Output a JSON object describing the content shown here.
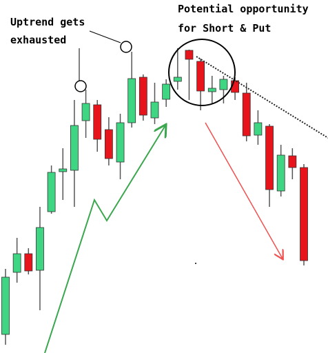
{
  "chart_data": {
    "type": "candlestick",
    "annotations": [
      {
        "lines": [
          "Uptrend gets",
          "exhausted"
        ]
      },
      {
        "lines": [
          "Potential opportunity",
          "for Short & Put"
        ]
      }
    ],
    "categories": [
      null,
      null,
      null,
      null,
      null,
      null,
      null,
      null,
      null,
      null,
      null,
      null,
      null,
      null,
      null,
      null,
      null,
      null,
      null,
      null,
      null,
      null,
      null,
      null,
      null,
      null,
      null
    ],
    "open": [
      27,
      117,
      144,
      120,
      205,
      263,
      265,
      337,
      360,
      324,
      277,
      334,
      400,
      341,
      368,
      394,
      439,
      423,
      379,
      382,
      395,
      377,
      316,
      329,
      235,
      286,
      269
    ],
    "high": [
      122,
      167,
      152,
      212,
      272,
      297,
      367,
      382,
      367,
      342,
      347,
      437,
      404,
      392,
      397,
      442,
      440,
      427,
      402,
      402,
      400,
      392,
      352,
      332,
      302,
      297,
      274
    ],
    "low": [
      12,
      102,
      114,
      62,
      202,
      222,
      212,
      312,
      292,
      272,
      252,
      327,
      337,
      332,
      357,
      382,
      367,
      352,
      362,
      362,
      367,
      307,
      302,
      212,
      227,
      252,
      127
    ],
    "close": [
      110,
      144,
      119,
      182,
      262,
      267,
      330,
      362,
      310,
      282,
      334,
      398,
      345,
      364,
      390,
      400,
      426,
      380,
      384,
      397,
      378,
      315,
      334,
      237,
      287,
      269,
      134
    ],
    "up_color": "#3fd683",
    "down_color": "#e8141b",
    "ylim": [
      0,
      512
    ]
  }
}
